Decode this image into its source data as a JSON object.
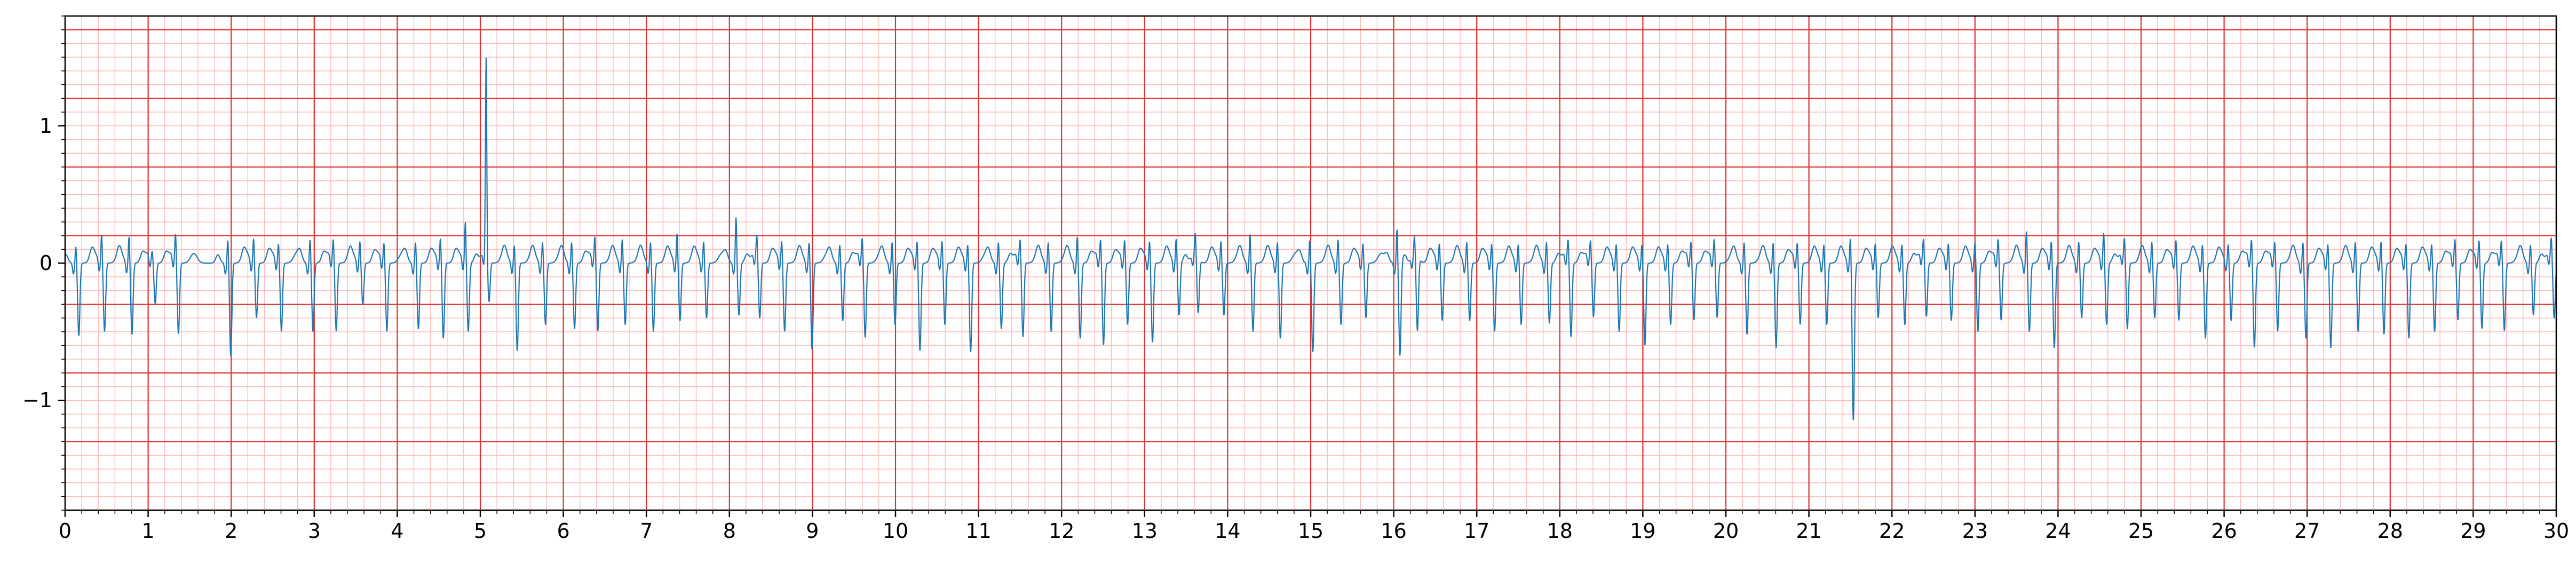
{
  "chart_data": {
    "type": "line",
    "title": "",
    "xlabel": "",
    "ylabel": "",
    "xlim": [
      0,
      30
    ],
    "ylim": [
      -1.8,
      1.8
    ],
    "x_ticks": [
      0,
      1,
      2,
      3,
      4,
      5,
      6,
      7,
      8,
      9,
      10,
      11,
      12,
      13,
      14,
      15,
      16,
      17,
      18,
      19,
      20,
      21,
      22,
      23,
      24,
      25,
      26,
      27,
      28,
      29,
      30
    ],
    "x_tick_labels": [
      "0",
      "1",
      "2",
      "3",
      "4",
      "5",
      "6",
      "7",
      "8",
      "9",
      "10",
      "11",
      "12",
      "13",
      "14",
      "15",
      "16",
      "17",
      "18",
      "19",
      "20",
      "21",
      "22",
      "23",
      "24",
      "25",
      "26",
      "27",
      "28",
      "29",
      "30"
    ],
    "y_ticks": [
      -1,
      0,
      1
    ],
    "y_tick_labels": [
      "−1",
      "0",
      "1"
    ],
    "grid": {
      "major": true,
      "minor": true,
      "major_x_step": 1,
      "minor_x_step": 0.2,
      "major_y_step": 0.5,
      "minor_y_step": 0.1,
      "major_color": "#e03030",
      "minor_color": "#ffbcbc"
    },
    "line_color": "#1f77b4",
    "series": [
      {
        "beat_times": [
          0.13,
          0.44,
          0.77,
          1.05,
          1.33,
          1.96,
          2.27,
          2.57,
          2.95,
          3.23,
          3.55,
          3.84,
          4.22,
          4.52,
          4.82,
          5.07,
          5.41,
          5.75,
          6.1,
          6.38,
          6.71,
          7.05,
          7.37,
          7.69,
          8.08,
          8.33,
          8.63,
          8.96,
          9.33,
          9.6,
          9.96,
          10.26,
          10.56,
          10.87,
          11.24,
          11.5,
          11.84,
          12.19,
          12.47,
          12.76,
          13.06,
          13.38,
          13.61,
          13.92,
          14.27,
          14.6,
          14.99,
          15.33,
          15.63,
          16.04,
          16.25,
          16.55,
          16.88,
          17.18,
          17.5,
          17.84,
          18.1,
          18.37,
          18.68,
          18.99,
          19.3,
          19.58,
          19.86,
          20.22,
          20.57,
          20.86,
          21.18,
          21.5,
          21.8,
          22.12,
          22.38,
          22.68,
          23.0,
          23.28,
          23.62,
          23.92,
          24.25,
          24.55,
          24.8,
          25.13,
          25.42,
          25.74,
          26.05,
          26.33,
          26.61,
          26.95,
          27.25,
          27.58,
          27.89,
          28.19,
          28.5,
          28.78,
          29.07,
          29.34,
          29.69,
          29.94
        ],
        "r_peaks": [
          0.13,
          0.21,
          0.2,
          0.07,
          0.2,
          0.18,
          0.18,
          0.14,
          0.18,
          0.16,
          0.16,
          0.14,
          0.16,
          0.18,
          0.3,
          1.45,
          0.14,
          0.16,
          0.16,
          0.18,
          0.18,
          0.16,
          0.22,
          0.16,
          0.34,
          0.16,
          0.16,
          0.16,
          0.14,
          0.16,
          0.16,
          0.16,
          0.16,
          0.14,
          0.16,
          0.14,
          0.16,
          0.2,
          0.16,
          0.16,
          0.16,
          0.18,
          0.16,
          0.16,
          0.22,
          0.16,
          0.18,
          0.18,
          0.14,
          0.26,
          0.14,
          0.14,
          0.16,
          0.14,
          0.14,
          0.16,
          0.14,
          0.14,
          0.14,
          0.14,
          0.14,
          0.14,
          0.16,
          0.16,
          0.16,
          0.14,
          0.14,
          0.2,
          0.14,
          0.14,
          0.14,
          0.14,
          0.16,
          0.16,
          0.24,
          0.16,
          0.16,
          0.22,
          0.14,
          0.16,
          0.16,
          0.14,
          0.14,
          0.16,
          0.14,
          0.16,
          0.14,
          0.16,
          0.16,
          0.14,
          0.14,
          0.16,
          0.16,
          0.14,
          0.14,
          0.14
        ],
        "s_troughs": [
          -0.53,
          -0.5,
          -0.52,
          -0.3,
          -0.52,
          -0.68,
          -0.4,
          -0.5,
          -0.5,
          -0.5,
          -0.3,
          -0.5,
          -0.48,
          -0.55,
          -0.5,
          -0.3,
          -0.64,
          -0.45,
          -0.48,
          -0.5,
          -0.45,
          -0.5,
          -0.42,
          -0.4,
          -0.38,
          -0.42,
          -0.5,
          -0.63,
          -0.42,
          -0.55,
          -0.45,
          -0.64,
          -0.45,
          -0.65,
          -0.48,
          -0.55,
          -0.5,
          -0.55,
          -0.6,
          -0.45,
          -0.58,
          -0.38,
          -0.4,
          -0.38,
          -0.5,
          -0.55,
          -0.65,
          -0.45,
          -0.4,
          -0.68,
          -0.55,
          -0.42,
          -0.42,
          -0.5,
          -0.45,
          -0.44,
          -0.55,
          -0.4,
          -0.5,
          -0.6,
          -0.45,
          -0.42,
          -0.4,
          -0.52,
          -0.62,
          -0.45,
          -0.45,
          -1.15,
          -0.4,
          -0.45,
          -0.4,
          -0.42,
          -0.5,
          -0.42,
          -0.5,
          -0.62,
          -0.4,
          -0.45,
          -0.5,
          -0.4,
          -0.42,
          -0.55,
          -0.42,
          -0.62,
          -0.5,
          -0.55,
          -0.62,
          -0.5,
          -0.52,
          -0.55,
          -0.5,
          -0.42,
          -0.48,
          -0.5,
          -0.38,
          -0.42
        ]
      }
    ]
  }
}
